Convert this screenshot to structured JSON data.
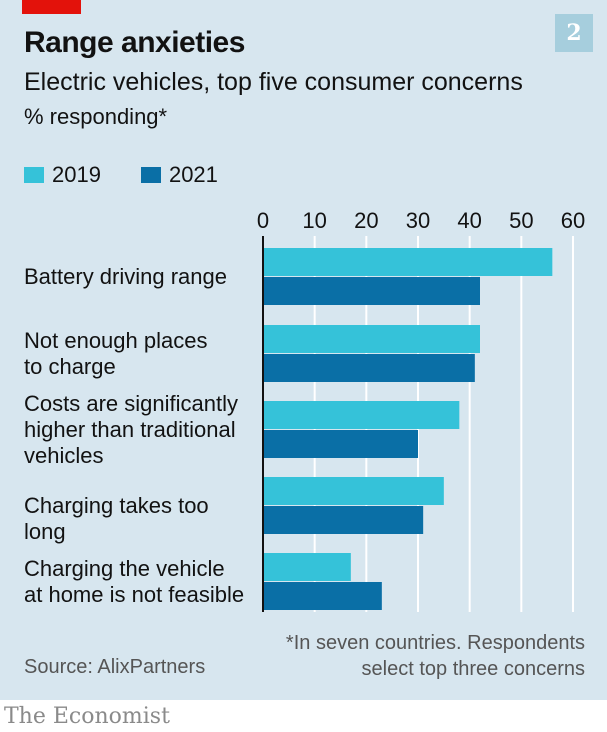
{
  "header": {
    "badge": "2",
    "title": "Range anxieties",
    "subtitle": "Electric vehicles, top five consumer concerns",
    "unit": "% responding*"
  },
  "colors": {
    "accent": "#e3120b",
    "series_2019": "#35c2d9",
    "series_2021": "#0a6fa6",
    "panel": "#d7e6ef"
  },
  "chart_data": {
    "type": "bar",
    "orientation": "horizontal",
    "title": "Range anxieties",
    "subtitle": "Electric vehicles, top five consumer concerns",
    "xlabel": "% responding*",
    "xlim": [
      0,
      60
    ],
    "xticks": [
      0,
      10,
      20,
      30,
      40,
      50,
      60
    ],
    "grid": true,
    "legend_position": "top-left",
    "categories": [
      "Battery driving range",
      "Not enough places to charge",
      "Costs are significantly higher than traditional vehicles",
      "Charging takes too long",
      "Charging the vehicle at home is not feasible"
    ],
    "category_lines": [
      [
        "Battery driving range"
      ],
      [
        "Not enough places",
        "to charge"
      ],
      [
        "Costs are significantly",
        "higher than traditional",
        "vehicles"
      ],
      [
        "Charging takes too long"
      ],
      [
        "Charging the vehicle",
        "at home is not feasible"
      ]
    ],
    "series": [
      {
        "name": "2019",
        "values": [
          56,
          42,
          38,
          35,
          17
        ]
      },
      {
        "name": "2021",
        "values": [
          42,
          41,
          30,
          31,
          23
        ]
      }
    ]
  },
  "footer": {
    "source": "Source: AlixPartners",
    "note_line1": "*In seven countries. Respondents",
    "note_line2": "select top three concerns",
    "brand": "The Economist"
  }
}
